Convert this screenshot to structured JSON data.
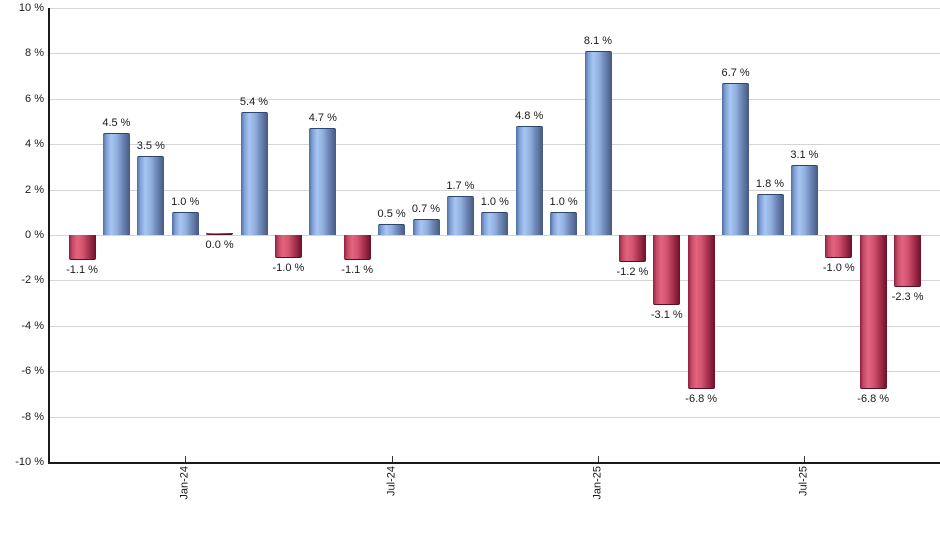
{
  "chart_data": {
    "type": "bar",
    "title": "",
    "xlabel": "",
    "ylabel": "",
    "unit": "%",
    "ylim": [
      -10,
      10
    ],
    "y_tick_step": 2,
    "y_tick_labels": [
      "10 %",
      "8 %",
      "6 %",
      "4 %",
      "2 %",
      "0 %",
      "-2 %",
      "-4 %",
      "-6 %",
      "-8 %",
      "-10 %"
    ],
    "y_tick_values": [
      10,
      8,
      6,
      4,
      2,
      0,
      -2,
      -4,
      -6,
      -8,
      -10
    ],
    "x_tick_labels": [
      {
        "label": "Jan-24",
        "bar_index": 3
      },
      {
        "label": "Jul-24",
        "bar_index": 9
      },
      {
        "label": "Jan-25",
        "bar_index": 15
      },
      {
        "label": "Jul-25",
        "bar_index": 21
      }
    ],
    "bars": [
      {
        "value": -1.1,
        "label": "-1.1 %"
      },
      {
        "value": 4.5,
        "label": "4.5 %"
      },
      {
        "value": 3.5,
        "label": "3.5 %"
      },
      {
        "value": 1.0,
        "label": "1.0 %"
      },
      {
        "value": 0.0,
        "label": "0.0 %"
      },
      {
        "value": 5.4,
        "label": "5.4 %"
      },
      {
        "value": -1.0,
        "label": "-1.0 %"
      },
      {
        "value": 4.7,
        "label": "4.7 %"
      },
      {
        "value": -1.1,
        "label": "-1.1 %"
      },
      {
        "value": 0.5,
        "label": "0.5 %"
      },
      {
        "value": 0.7,
        "label": "0.7 %"
      },
      {
        "value": 1.7,
        "label": "1.7 %"
      },
      {
        "value": 1.0,
        "label": "1.0 %"
      },
      {
        "value": 4.8,
        "label": "4.8 %"
      },
      {
        "value": 1.0,
        "label": "1.0 %"
      },
      {
        "value": 8.1,
        "label": "8.1 %"
      },
      {
        "value": -1.2,
        "label": "-1.2 %"
      },
      {
        "value": -3.1,
        "label": "-3.1 %"
      },
      {
        "value": -6.8,
        "label": "-6.8 %"
      },
      {
        "value": 6.7,
        "label": "6.7 %"
      },
      {
        "value": 1.8,
        "label": "1.8 %"
      },
      {
        "value": 3.1,
        "label": "3.1 %"
      },
      {
        "value": -1.0,
        "label": "-1.0 %"
      },
      {
        "value": -6.8,
        "label": "-6.8 %"
      },
      {
        "value": -2.3,
        "label": "-2.3 %"
      }
    ],
    "colors": {
      "positive_light": "#a8c6f2",
      "positive_dark": "#47597e",
      "positive_edge": "#4e6da0",
      "negative_light": "#e4647f",
      "negative_dark": "#6b1029",
      "negative_edge": "#8c1f3e",
      "grid": "#d4d4d4",
      "axis": "#1a1a1a",
      "text": "#1a1a1a"
    },
    "grid": true,
    "legend": false
  }
}
